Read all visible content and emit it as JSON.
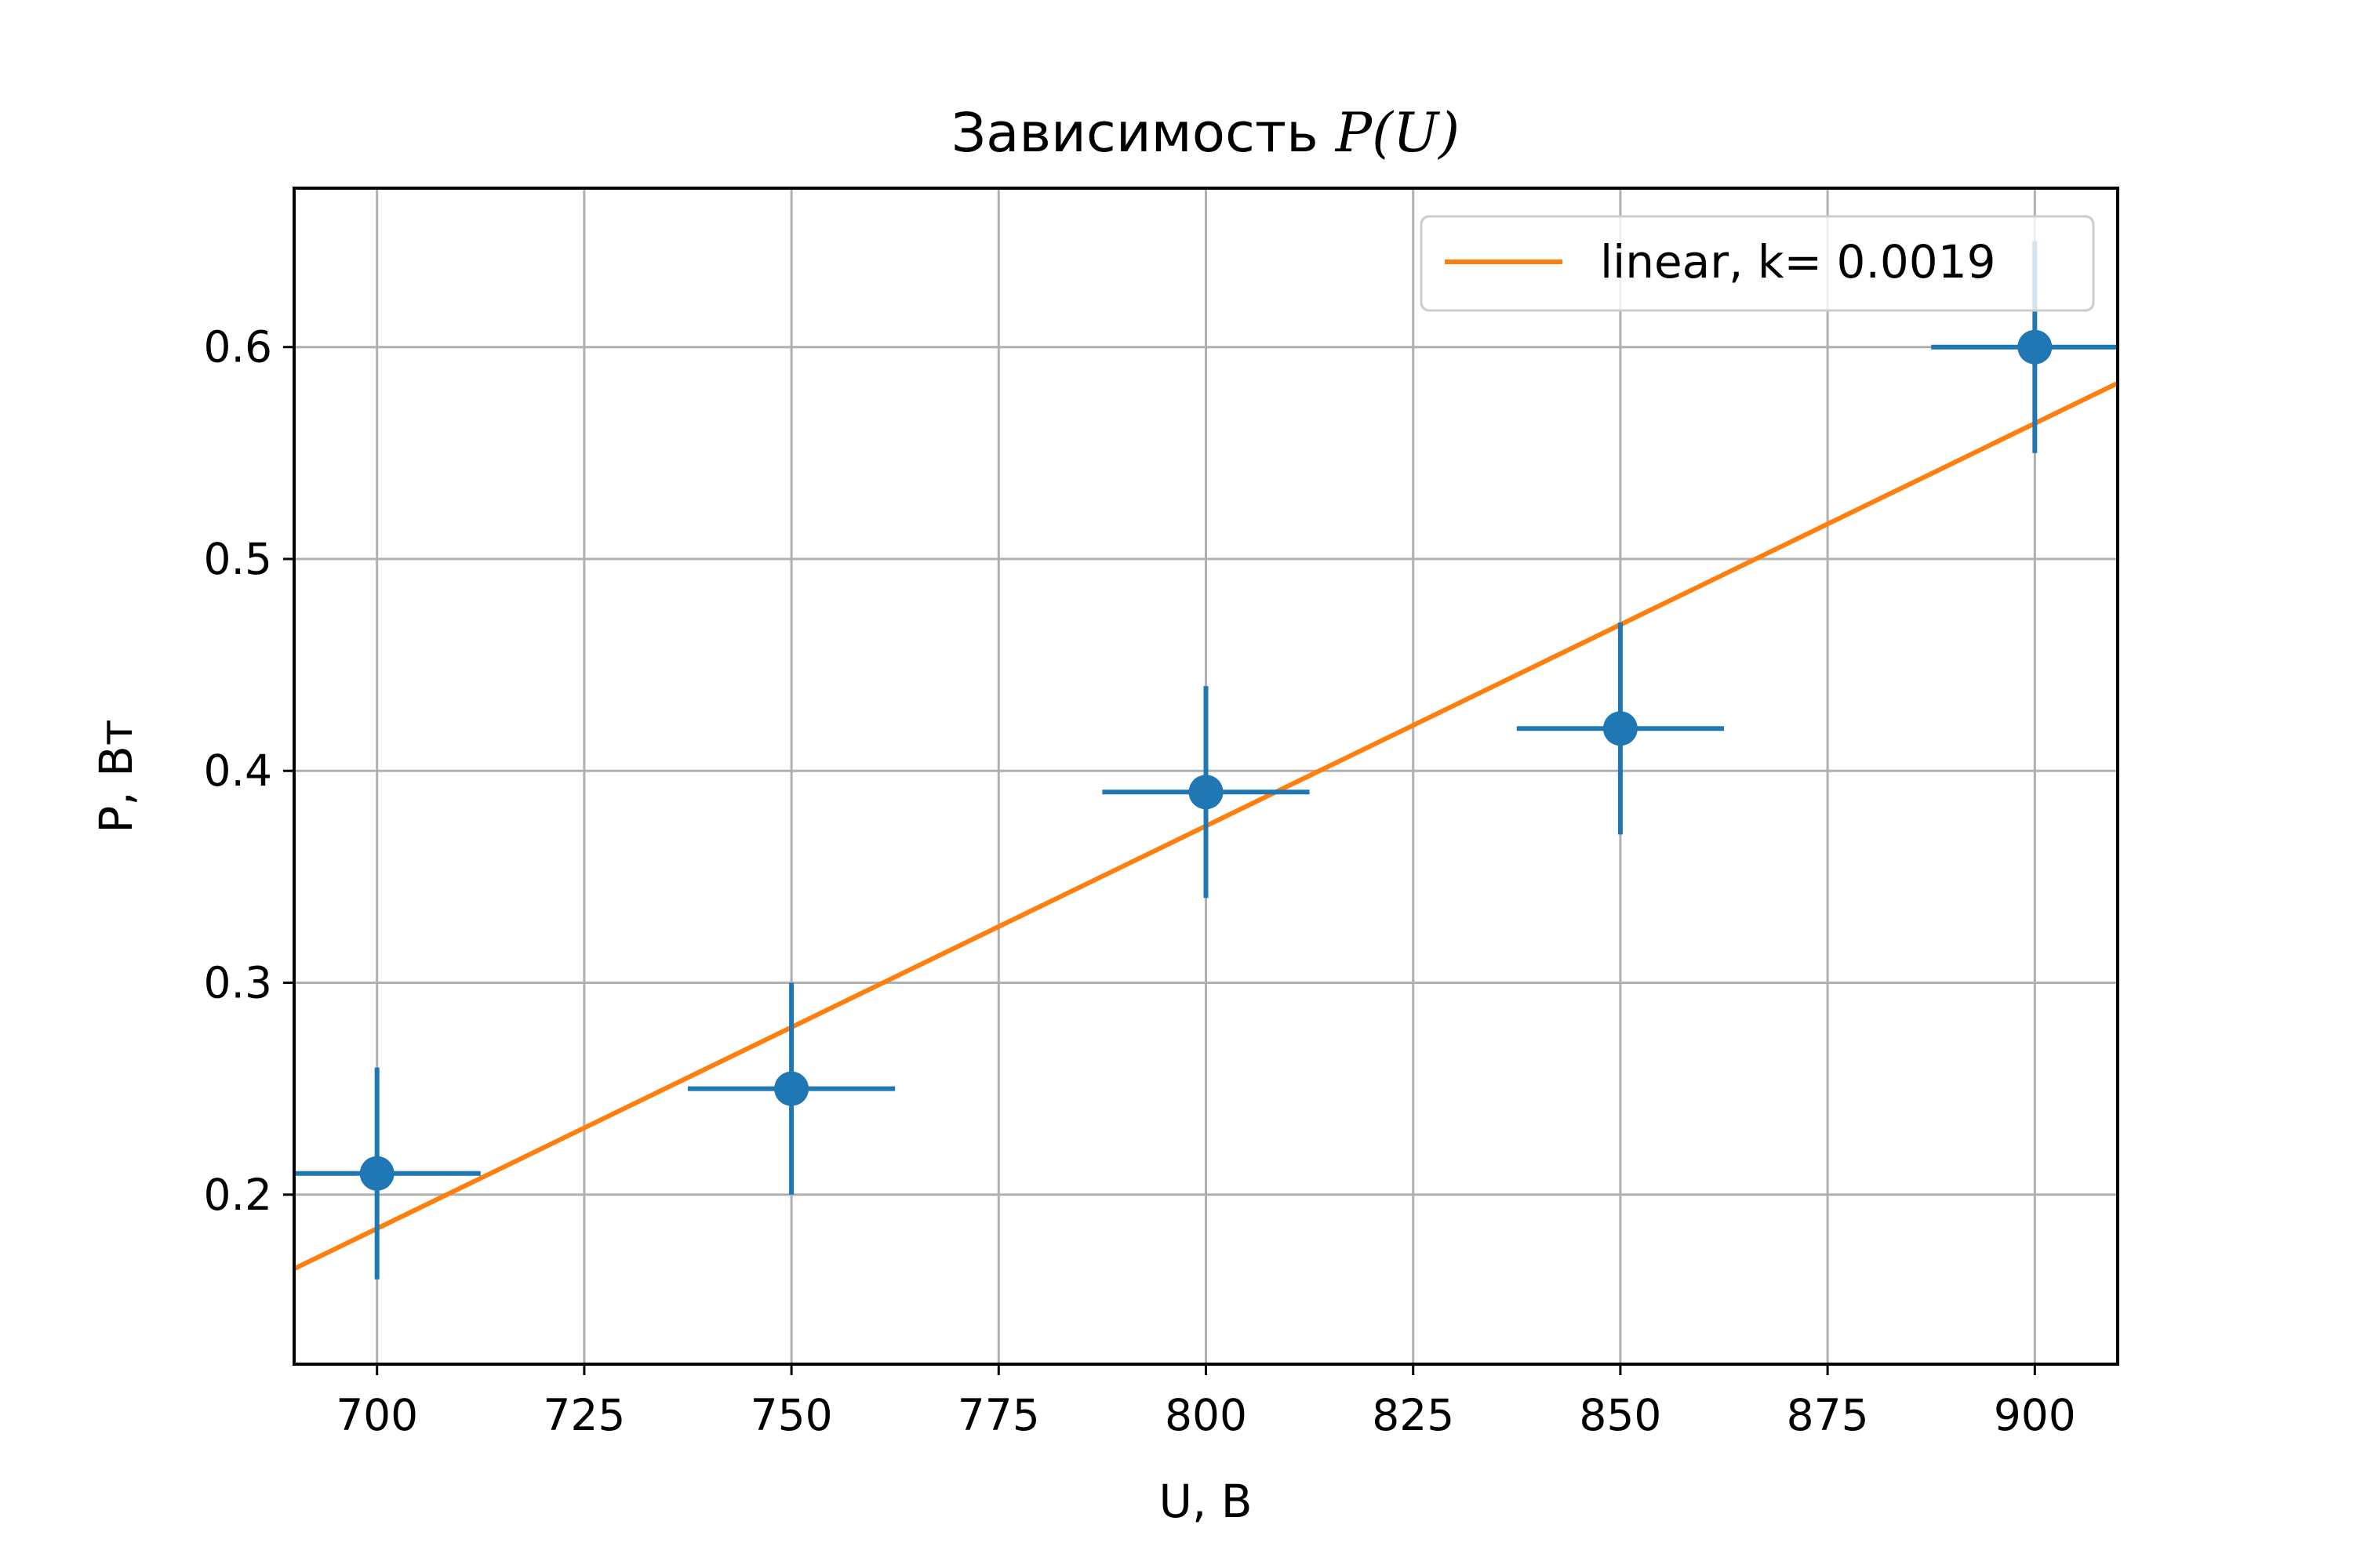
{
  "chart_data": {
    "type": "scatter",
    "title": "Зависимость ",
    "title_math": "P(U)",
    "xlabel": "U, В",
    "ylabel": "P, Вт",
    "xlim": [
      690,
      910
    ],
    "ylim": [
      0.12,
      0.675
    ],
    "xticks": [
      700,
      725,
      750,
      775,
      800,
      825,
      850,
      875,
      900
    ],
    "yticks": [
      0.2,
      0.3,
      0.4,
      0.5,
      0.6
    ],
    "grid": true,
    "legend_position": "top-right",
    "series": [
      {
        "kind": "errorbar",
        "color": "#1f77b4",
        "x": [
          700,
          750,
          800,
          850,
          900
        ],
        "y": [
          0.21,
          0.25,
          0.39,
          0.42,
          0.6
        ],
        "xerr": [
          12.5,
          12.5,
          12.5,
          12.5,
          12.5
        ],
        "yerr": [
          0.05,
          0.05,
          0.05,
          0.05,
          0.05
        ]
      },
      {
        "kind": "line",
        "name": "linear, k= 0.0019",
        "color": "#ff7f0e",
        "slope": 0.0019,
        "intercept": -1.146
      }
    ]
  }
}
